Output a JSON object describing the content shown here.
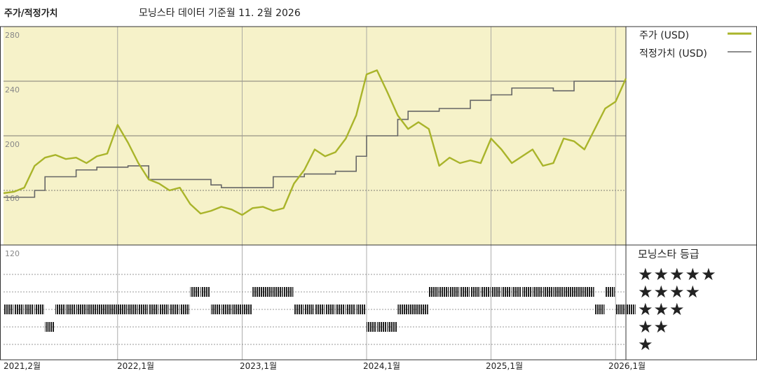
{
  "header": {
    "title": "주가/적정가치",
    "subtitle": "모닝스타 데이터 기준월 11. 2월 2026"
  },
  "legend": {
    "price_label": "주가 (USD)",
    "fair_value_label": "적정가치 (USD)"
  },
  "rating_panel": {
    "title": "모닝스타 등급",
    "rows": [
      "★★★★★",
      "★★★★",
      "★★★",
      "★★",
      "★"
    ]
  },
  "colors": {
    "plot_background": "#f6f2c9",
    "price_line": "#a9b42a",
    "fair_value_line": "#666666",
    "grid": "#555555",
    "rating_bar": "#222222"
  },
  "chart_data": {
    "type": "line",
    "x_unit": "month",
    "x_start": "2021-02",
    "x_end": "2026-02",
    "ylim": [
      120,
      280
    ],
    "y_ticks": [
      "280",
      "240",
      "200",
      "160",
      "120"
    ],
    "x_tick_labels": [
      "2021,2월",
      "2022,1월",
      "2023,1월",
      "2024,1월",
      "2025,1월",
      "2026,1월"
    ],
    "grid": true,
    "legend_position": "right",
    "series": [
      {
        "name": "주가 (USD)",
        "x": [
          "2021-02",
          "2021-03",
          "2021-04",
          "2021-05",
          "2021-06",
          "2021-07",
          "2021-08",
          "2021-09",
          "2021-10",
          "2021-11",
          "2021-12",
          "2022-01",
          "2022-02",
          "2022-03",
          "2022-04",
          "2022-05",
          "2022-06",
          "2022-07",
          "2022-08",
          "2022-09",
          "2022-10",
          "2022-11",
          "2022-12",
          "2023-01",
          "2023-02",
          "2023-03",
          "2023-04",
          "2023-05",
          "2023-06",
          "2023-07",
          "2023-08",
          "2023-09",
          "2023-10",
          "2023-11",
          "2023-12",
          "2024-01",
          "2024-02",
          "2024-03",
          "2024-04",
          "2024-05",
          "2024-06",
          "2024-07",
          "2024-08",
          "2024-09",
          "2024-10",
          "2024-11",
          "2024-12",
          "2025-01",
          "2025-02",
          "2025-03",
          "2025-04",
          "2025-05",
          "2025-06",
          "2025-07",
          "2025-08",
          "2025-09",
          "2025-10",
          "2025-11",
          "2025-12",
          "2026-01",
          "2026-02"
        ],
        "values": [
          158,
          159,
          162,
          178,
          184,
          186,
          183,
          184,
          180,
          185,
          187,
          208,
          195,
          180,
          168,
          165,
          160,
          162,
          150,
          143,
          145,
          148,
          146,
          142,
          147,
          148,
          145,
          147,
          165,
          175,
          190,
          185,
          188,
          198,
          215,
          245,
          248,
          232,
          215,
          205,
          210,
          205,
          178,
          184,
          180,
          182,
          180,
          198,
          190,
          180,
          185,
          190,
          178,
          180,
          198,
          196,
          190,
          205,
          220,
          225,
          242
        ]
      },
      {
        "name": "적정가치 (USD)",
        "x": [
          "2021-02",
          "2021-05",
          "2021-06",
          "2021-09",
          "2021-11",
          "2022-02",
          "2022-04",
          "2022-07",
          "2022-10",
          "2022-11",
          "2023-02",
          "2023-04",
          "2023-07",
          "2023-10",
          "2023-12",
          "2024-01",
          "2024-04",
          "2024-05",
          "2024-08",
          "2024-11",
          "2025-01",
          "2025-03",
          "2025-07",
          "2025-09",
          "2025-12",
          "2026-02"
        ],
        "values": [
          155,
          160,
          170,
          175,
          177,
          178,
          168,
          168,
          164,
          162,
          162,
          170,
          172,
          174,
          185,
          200,
          212,
          218,
          220,
          226,
          230,
          235,
          233,
          240,
          240,
          240
        ]
      }
    ],
    "rating_history": {
      "description": "Morningstar star rating by month",
      "months": [
        "2021-02",
        "2021-03",
        "2021-04",
        "2021-05",
        "2021-06",
        "2021-07",
        "2021-08",
        "2021-09",
        "2021-10",
        "2021-11",
        "2021-12",
        "2022-01",
        "2022-02",
        "2022-03",
        "2022-04",
        "2022-05",
        "2022-06",
        "2022-07",
        "2022-08",
        "2022-09",
        "2022-10",
        "2022-11",
        "2022-12",
        "2023-01",
        "2023-02",
        "2023-03",
        "2023-04",
        "2023-05",
        "2023-06",
        "2023-07",
        "2023-08",
        "2023-09",
        "2023-10",
        "2023-11",
        "2023-12",
        "2024-01",
        "2024-02",
        "2024-03",
        "2024-04",
        "2024-05",
        "2024-06",
        "2024-07",
        "2024-08",
        "2024-09",
        "2024-10",
        "2024-11",
        "2024-12",
        "2025-01",
        "2025-02",
        "2025-03",
        "2025-04",
        "2025-05",
        "2025-06",
        "2025-07",
        "2025-08",
        "2025-09",
        "2025-10",
        "2025-11",
        "2025-12",
        "2026-01",
        "2026-02"
      ],
      "stars": [
        3,
        3,
        3,
        3,
        2,
        3,
        3,
        3,
        3,
        3,
        3,
        3,
        3,
        3,
        3,
        3,
        3,
        3,
        4,
        4,
        3,
        3,
        3,
        3,
        4,
        4,
        4,
        4,
        3,
        3,
        3,
        3,
        3,
        3,
        3,
        2,
        2,
        2,
        3,
        3,
        3,
        4,
        4,
        4,
        4,
        4,
        4,
        4,
        4,
        4,
        4,
        4,
        4,
        4,
        4,
        4,
        4,
        3,
        4,
        3,
        3
      ]
    }
  }
}
